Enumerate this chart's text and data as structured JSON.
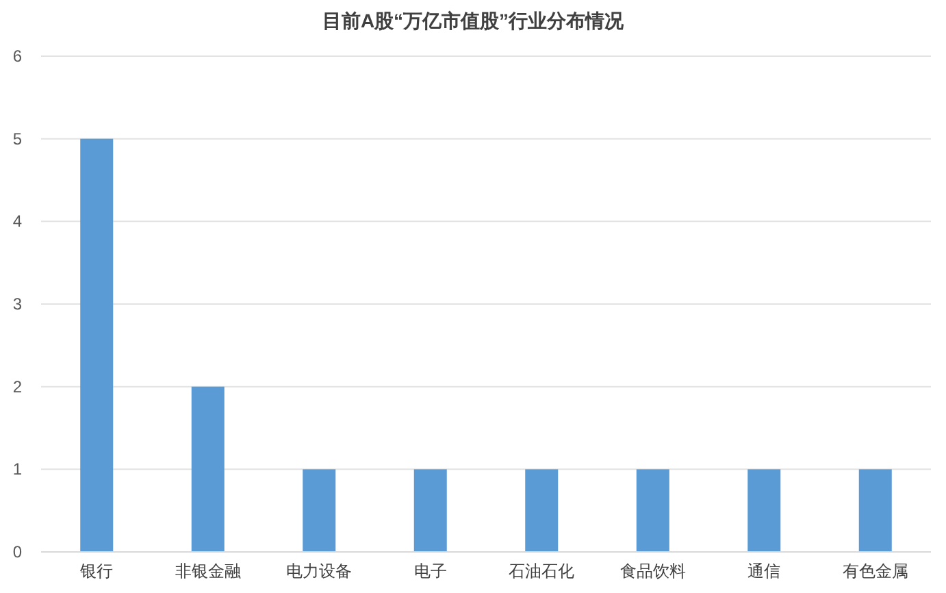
{
  "chart_data": {
    "type": "bar",
    "title": "目前A股“万亿市值股”行业分布情况",
    "categories": [
      "银行",
      "非银金融",
      "电力设备",
      "电子",
      "石油石化",
      "食品饮料",
      "通信",
      "有色金属"
    ],
    "values": [
      5,
      2,
      1,
      1,
      1,
      1,
      1,
      1
    ],
    "color": "#5b9bd5",
    "ylim": [
      0,
      6
    ],
    "yticks": [
      0,
      1,
      2,
      3,
      4,
      5,
      6
    ],
    "grid": "y"
  }
}
